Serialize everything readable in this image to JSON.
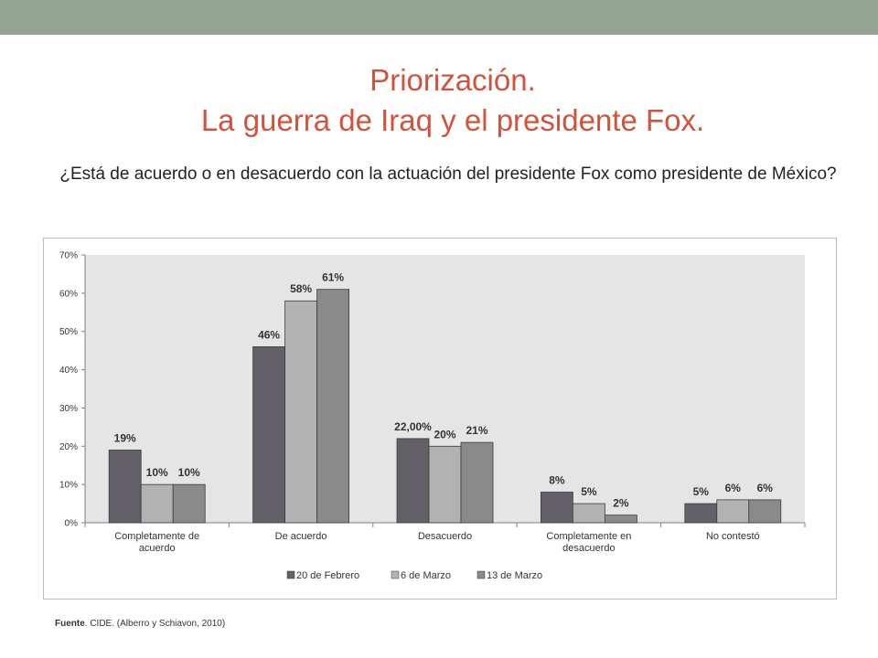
{
  "slide": {
    "title_line1": "Priorización.",
    "title_line2": "La guerra de Iraq y el presidente Fox.",
    "question": "¿Está de acuerdo o en desacuerdo con la actuación del presidente Fox como presidente de México?",
    "source_label": "Fuente",
    "source_text": ". CIDE.  (Alberro y Schiavon, 2010)",
    "colors": {
      "title": "#d2533a",
      "top_bar": "#95a595",
      "plot_bg": "#e5e5e5"
    }
  },
  "chart_data": {
    "type": "bar",
    "categories": [
      "Completamente de acuerdo",
      "De acuerdo",
      "Desacuerdo",
      "Completamente en desacuerdo",
      "No contestó"
    ],
    "category_lines": [
      [
        "Completamente de",
        "acuerdo"
      ],
      [
        "De acuerdo"
      ],
      [
        "Desacuerdo"
      ],
      [
        "Completamente en",
        "desacuerdo"
      ],
      [
        "No contestó"
      ]
    ],
    "series": [
      {
        "name": "20 de Febrero",
        "color": "#636167",
        "values": [
          19,
          46,
          22,
          8,
          5
        ],
        "labels": [
          "19%",
          "46%",
          "22,00%",
          "8%",
          "5%"
        ]
      },
      {
        "name": "6 de Marzo",
        "color": "#b2b2b2",
        "values": [
          10,
          58,
          20,
          5,
          6
        ],
        "labels": [
          "10%",
          "58%",
          "20%",
          "5%",
          "6%"
        ]
      },
      {
        "name": "13 de Marzo",
        "color": "#8a8a8a",
        "values": [
          10,
          61,
          21,
          2,
          6
        ],
        "labels": [
          "10%",
          "61%",
          "21%",
          "2%",
          "6%"
        ]
      }
    ],
    "ylim": [
      0,
      70
    ],
    "yticks": [
      0,
      10,
      20,
      30,
      40,
      50,
      60,
      70
    ],
    "ytick_labels": [
      "0%",
      "10%",
      "20%",
      "30%",
      "40%",
      "50%",
      "60%",
      "70%"
    ],
    "grid": false,
    "legend_position": "bottom"
  }
}
